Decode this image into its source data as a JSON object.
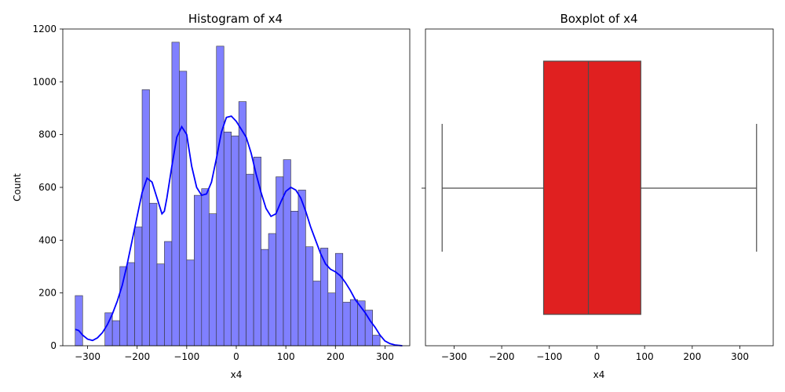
{
  "chart_data": [
    {
      "type": "bar",
      "title": "Histogram of x4",
      "xlabel": "x4",
      "ylabel": "Count",
      "xlim": [
        -350,
        350
      ],
      "ylim": [
        0,
        1200
      ],
      "xticks": [
        -300,
        -200,
        -100,
        0,
        100,
        200,
        300
      ],
      "yticks": [
        0,
        200,
        400,
        600,
        800,
        1000,
        1200
      ],
      "bar_color": "#8080ff",
      "kde_color": "#0000ff",
      "bin_edges": [
        -325,
        -310,
        -295,
        -280,
        -265,
        -250,
        -235,
        -220,
        -205,
        -190,
        -175,
        -160,
        -145,
        -130,
        -115,
        -100,
        -85,
        -70,
        -55,
        -40,
        -25,
        -10,
        5,
        20,
        35,
        50,
        65,
        80,
        95,
        110,
        125,
        140,
        155,
        170,
        185,
        200,
        215,
        230,
        245,
        260,
        275,
        290,
        305
      ],
      "counts": [
        190,
        0,
        0,
        0,
        125,
        95,
        300,
        315,
        450,
        970,
        540,
        310,
        395,
        1150,
        1040,
        325,
        570,
        595,
        500,
        1135,
        810,
        795,
        925,
        650,
        715,
        365,
        425,
        640,
        705,
        510,
        590,
        375,
        245,
        370,
        200,
        350,
        165,
        175,
        170,
        135,
        40,
        0
      ],
      "kde": [
        [
          -325,
          62
        ],
        [
          -318,
          58
        ],
        [
          -310,
          40
        ],
        [
          -300,
          25
        ],
        [
          -290,
          20
        ],
        [
          -280,
          30
        ],
        [
          -270,
          50
        ],
        [
          -260,
          80
        ],
        [
          -250,
          120
        ],
        [
          -240,
          170
        ],
        [
          -230,
          230
        ],
        [
          -220,
          310
        ],
        [
          -210,
          400
        ],
        [
          -200,
          490
        ],
        [
          -190,
          580
        ],
        [
          -180,
          635
        ],
        [
          -170,
          620
        ],
        [
          -160,
          560
        ],
        [
          -150,
          500
        ],
        [
          -145,
          510
        ],
        [
          -140,
          560
        ],
        [
          -130,
          680
        ],
        [
          -120,
          790
        ],
        [
          -110,
          830
        ],
        [
          -100,
          800
        ],
        [
          -95,
          740
        ],
        [
          -90,
          680
        ],
        [
          -80,
          600
        ],
        [
          -70,
          570
        ],
        [
          -60,
          575
        ],
        [
          -50,
          620
        ],
        [
          -40,
          710
        ],
        [
          -30,
          810
        ],
        [
          -20,
          865
        ],
        [
          -10,
          870
        ],
        [
          0,
          850
        ],
        [
          10,
          820
        ],
        [
          20,
          790
        ],
        [
          30,
          730
        ],
        [
          40,
          650
        ],
        [
          50,
          580
        ],
        [
          60,
          520
        ],
        [
          70,
          490
        ],
        [
          80,
          500
        ],
        [
          90,
          545
        ],
        [
          100,
          585
        ],
        [
          110,
          600
        ],
        [
          120,
          590
        ],
        [
          130,
          560
        ],
        [
          140,
          510
        ],
        [
          150,
          450
        ],
        [
          160,
          400
        ],
        [
          170,
          350
        ],
        [
          180,
          310
        ],
        [
          190,
          290
        ],
        [
          200,
          280
        ],
        [
          210,
          265
        ],
        [
          220,
          240
        ],
        [
          230,
          210
        ],
        [
          240,
          175
        ],
        [
          250,
          150
        ],
        [
          260,
          125
        ],
        [
          270,
          95
        ],
        [
          280,
          70
        ],
        [
          290,
          40
        ],
        [
          300,
          18
        ],
        [
          310,
          8
        ],
        [
          320,
          3
        ],
        [
          330,
          1
        ],
        [
          335,
          0
        ]
      ]
    },
    {
      "type": "box",
      "title": "Boxplot of x4",
      "xlabel": "x4",
      "ylabel": "",
      "xlim": [
        -360,
        370
      ],
      "xticks": [
        -300,
        -200,
        -100,
        0,
        100,
        200,
        300
      ],
      "box_color": "#e02020",
      "line_color": "#4d4d4d",
      "whisker_low": -325,
      "q1": -112,
      "median": -18,
      "q3": 92,
      "whisker_high": 335
    }
  ]
}
